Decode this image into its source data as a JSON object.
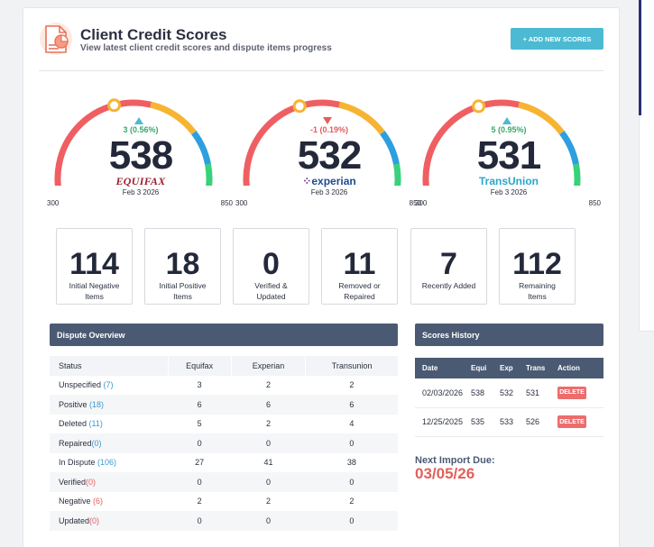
{
  "header": {
    "title": "Client Credit Scores",
    "subtitle": "View latest client credit scores and dispute items progress",
    "add_button": "+ ADD NEW SCORES",
    "icon": "report-chart-icon"
  },
  "colors": {
    "accent": "#4bbad2",
    "gauge_red": "#ef5f62",
    "gauge_orange": "#f6b434",
    "gauge_blue": "#2d9fde",
    "gauge_green": "#37d27a",
    "panel_header": "#4b5a73",
    "delete": "#ec6d6d"
  },
  "gauges": [
    {
      "bureau": "Equifax",
      "brand_text": "EQUIFAX",
      "score": "538",
      "score_value": 538,
      "change": "3 (0.56%)",
      "direction": "up",
      "date": "Feb 3 2026",
      "min": "300",
      "max": "850"
    },
    {
      "bureau": "Experian",
      "brand_text": "experian",
      "score": "532",
      "score_value": 532,
      "change": "-1 (0.19%)",
      "direction": "down",
      "date": "Feb 3 2026",
      "min": "300",
      "max": "850"
    },
    {
      "bureau": "TransUnion",
      "brand_text": "TransUnion",
      "score": "531",
      "score_value": 531,
      "change": "5 (0.95%)",
      "direction": "up",
      "date": "Feb 3 2026",
      "min": "300",
      "max": "850"
    }
  ],
  "stats": [
    {
      "value": "114",
      "line1": "Initial Negative",
      "line2": "Items"
    },
    {
      "value": "18",
      "line1": "Initial Positive",
      "line2": "Items"
    },
    {
      "value": "0",
      "line1": "Verified &",
      "line2": "Updated"
    },
    {
      "value": "11",
      "line1": "Removed or",
      "line2": "Repaired"
    },
    {
      "value": "7",
      "line1": "Recently Added",
      "line2": ""
    },
    {
      "value": "112",
      "line1": "Remaining",
      "line2": "Items"
    }
  ],
  "dispute_overview": {
    "title": "Dispute Overview",
    "columns": [
      "Status",
      "Equifax",
      "Experian",
      "Transunion"
    ],
    "rows": [
      {
        "status": "Unspecified",
        "count": "(7)",
        "tone": "pos",
        "values": [
          "3",
          "2",
          "2"
        ]
      },
      {
        "status": "Positive",
        "count": "(18)",
        "tone": "pos",
        "values": [
          "6",
          "6",
          "6"
        ]
      },
      {
        "status": "Deleted",
        "count": "(11)",
        "tone": "pos",
        "values": [
          "5",
          "2",
          "4"
        ]
      },
      {
        "status": "Repaired",
        "count": "(0)",
        "tone": "pos",
        "values": [
          "0",
          "0",
          "0"
        ]
      },
      {
        "status": "In Dispute",
        "count": "(106)",
        "tone": "pos",
        "values": [
          "27",
          "41",
          "38"
        ]
      },
      {
        "status": "Verified",
        "count": "(0)",
        "tone": "neg",
        "values": [
          "0",
          "0",
          "0"
        ]
      },
      {
        "status": "Negative",
        "count": "(6)",
        "tone": "neg",
        "values": [
          "2",
          "2",
          "2"
        ]
      },
      {
        "status": "Updated",
        "count": "(0)",
        "tone": "neg",
        "values": [
          "0",
          "0",
          "0"
        ]
      }
    ]
  },
  "scores_history": {
    "title": "Scores History",
    "columns": [
      "Date",
      "Equi",
      "Exp",
      "Trans",
      "Action"
    ],
    "rows": [
      {
        "date": "02/03/2026",
        "equi": "538",
        "exp": "532",
        "trans": "531",
        "action": "DELETE"
      },
      {
        "date": "12/25/2025",
        "equi": "535",
        "exp": "533",
        "trans": "526",
        "action": "DELETE"
      }
    ]
  },
  "next_import": {
    "label": "Next Import Due:",
    "date": "03/05/26"
  }
}
